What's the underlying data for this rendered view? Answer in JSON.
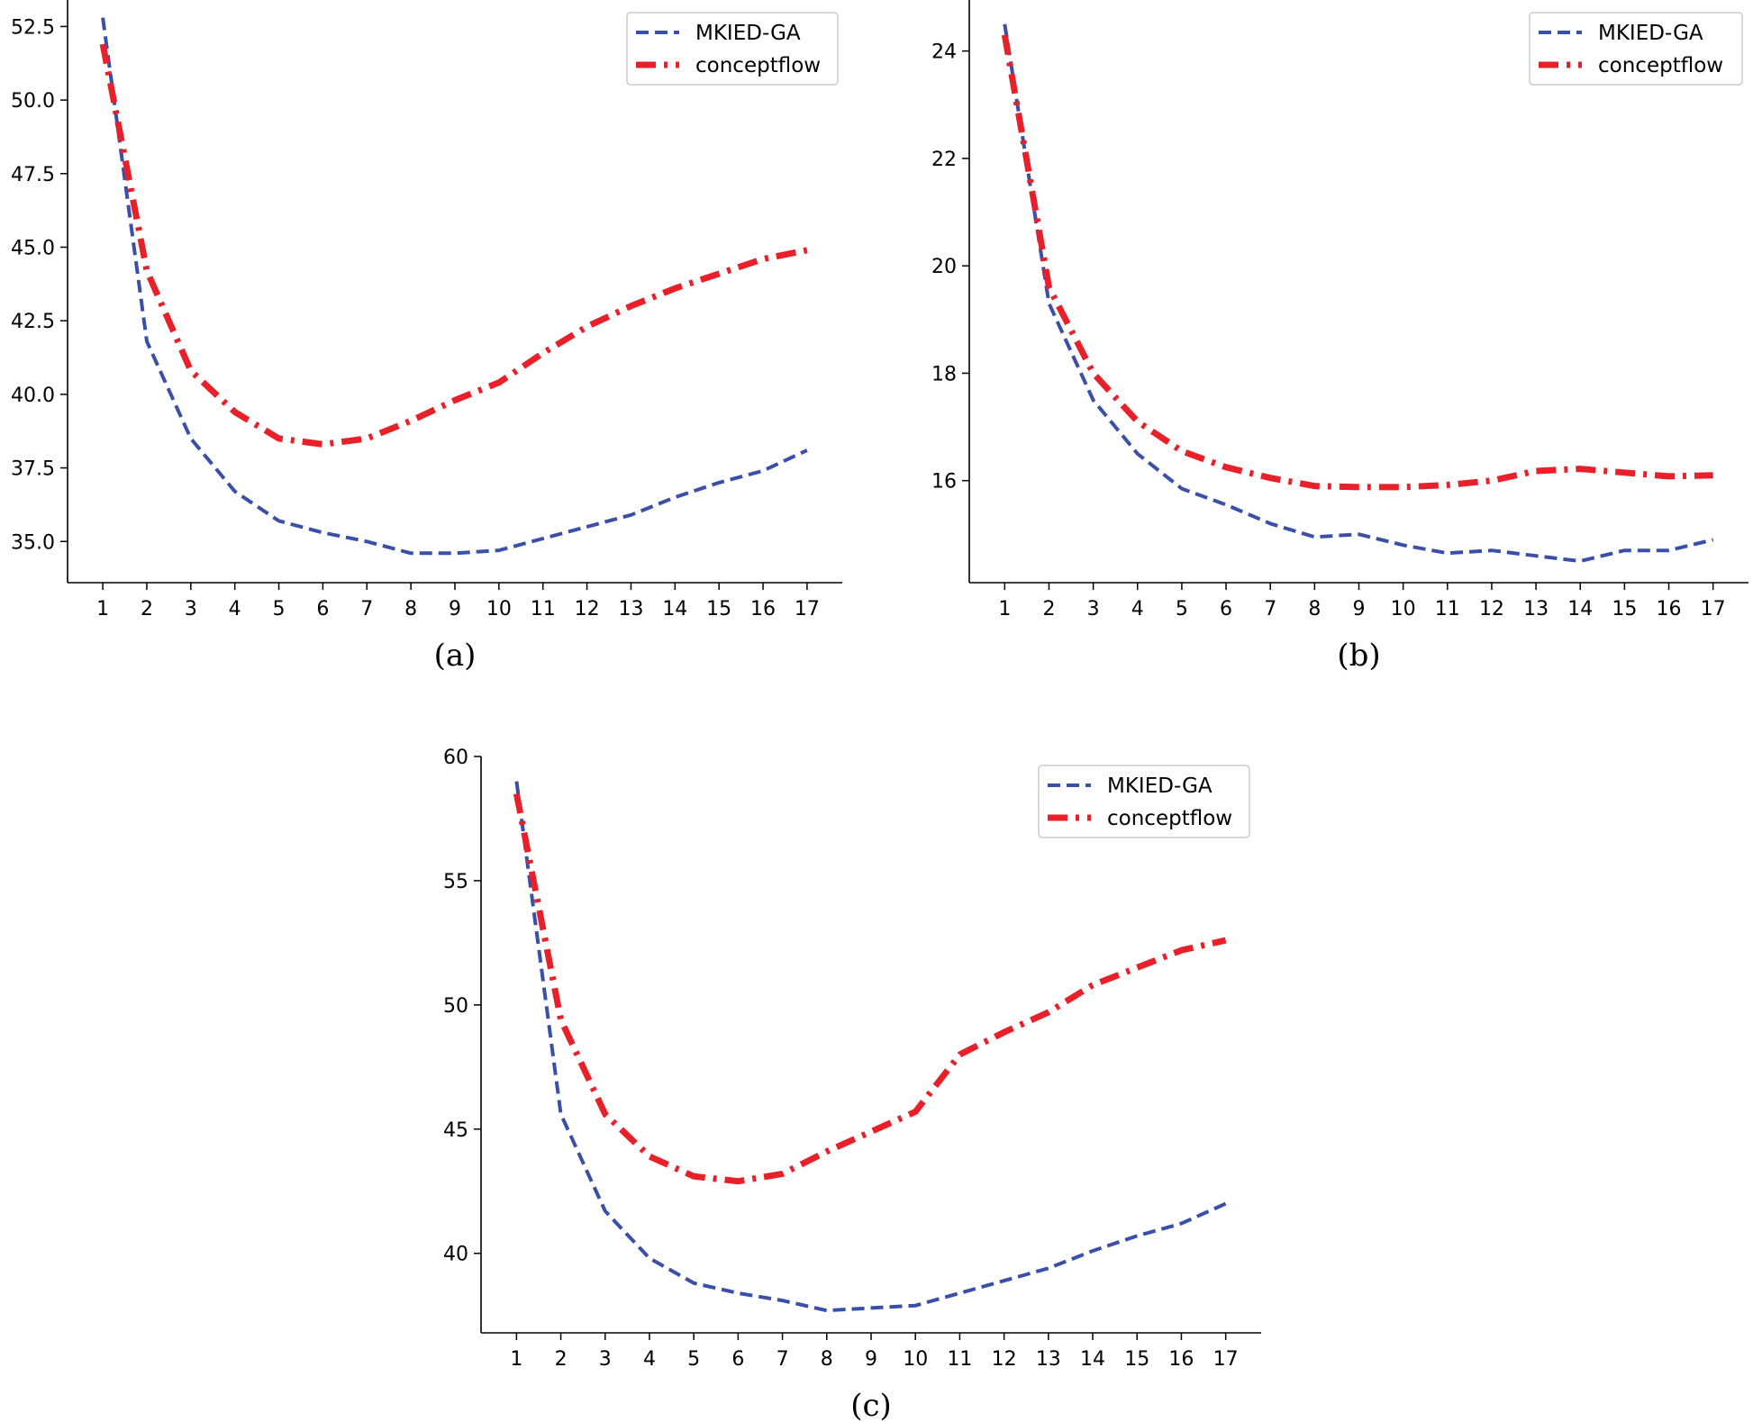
{
  "chart_data": [
    {
      "id": "a",
      "type": "line",
      "caption": "(a)",
      "x": [
        1,
        2,
        3,
        4,
        5,
        6,
        7,
        8,
        9,
        10,
        11,
        12,
        13,
        14,
        15,
        16,
        17
      ],
      "series": [
        {
          "name": "MKIED-GA",
          "color": "#3a4fa8",
          "style": "dashed",
          "values": [
            52.8,
            41.8,
            38.5,
            36.7,
            35.7,
            35.3,
            35.0,
            34.6,
            34.6,
            34.7,
            35.1,
            35.5,
            35.9,
            36.5,
            37.0,
            37.4,
            38.1
          ]
        },
        {
          "name": "conceptflow",
          "color": "#e8202a",
          "style": "dashdot",
          "values": [
            51.9,
            44.2,
            40.8,
            39.4,
            38.5,
            38.3,
            38.5,
            39.1,
            39.8,
            40.4,
            41.4,
            42.3,
            43.0,
            43.6,
            44.1,
            44.6,
            44.9
          ]
        }
      ],
      "yticks": [
        35.0,
        37.5,
        40.0,
        42.5,
        45.0,
        47.5,
        50.0,
        52.5
      ],
      "ytick_labels": [
        "35.0",
        "37.5",
        "40.0",
        "42.5",
        "45.0",
        "47.5",
        "50.0",
        "52.5"
      ],
      "xticks": [
        "1",
        "2",
        "3",
        "4",
        "5",
        "6",
        "7",
        "8",
        "9",
        "10",
        "11",
        "12",
        "13",
        "14",
        "15",
        "16",
        "17"
      ],
      "ylim": [
        33.6,
        53.4
      ],
      "xlim": [
        0.2,
        17.8
      ],
      "legend": "top-right"
    },
    {
      "id": "b",
      "type": "line",
      "caption": "(b)",
      "x": [
        1,
        2,
        3,
        4,
        5,
        6,
        7,
        8,
        9,
        10,
        11,
        12,
        13,
        14,
        15,
        16,
        17
      ],
      "series": [
        {
          "name": "MKIED-GA",
          "color": "#3a4fa8",
          "style": "dashed",
          "values": [
            24.5,
            19.3,
            17.5,
            16.5,
            15.85,
            15.55,
            15.2,
            14.95,
            15.0,
            14.8,
            14.65,
            14.7,
            14.6,
            14.5,
            14.7,
            14.7,
            14.9
          ]
        },
        {
          "name": "conceptflow",
          "color": "#e8202a",
          "style": "dashdot",
          "values": [
            24.3,
            19.6,
            18.0,
            17.1,
            16.55,
            16.25,
            16.05,
            15.9,
            15.88,
            15.88,
            15.92,
            16.0,
            16.18,
            16.22,
            16.15,
            16.08,
            16.1
          ]
        }
      ],
      "yticks": [
        16,
        18,
        20,
        22,
        24
      ],
      "ytick_labels": [
        "16",
        "18",
        "20",
        "22",
        "24"
      ],
      "xticks": [
        "1",
        "2",
        "3",
        "4",
        "5",
        "6",
        "7",
        "8",
        "9",
        "10",
        "11",
        "12",
        "13",
        "14",
        "15",
        "16",
        "17"
      ],
      "ylim": [
        14.1,
        24.95
      ],
      "xlim": [
        0.2,
        17.8
      ],
      "legend": "top-right"
    },
    {
      "id": "c",
      "type": "line",
      "caption": "(c)",
      "x": [
        1,
        2,
        3,
        4,
        5,
        6,
        7,
        8,
        9,
        10,
        11,
        12,
        13,
        14,
        15,
        16,
        17
      ],
      "series": [
        {
          "name": "MKIED-GA",
          "color": "#3a4fa8",
          "style": "dashed",
          "values": [
            59.0,
            45.6,
            41.7,
            39.8,
            38.8,
            38.4,
            38.1,
            37.7,
            37.8,
            37.9,
            38.4,
            38.9,
            39.4,
            40.1,
            40.7,
            41.2,
            42.0
          ]
        },
        {
          "name": "conceptflow",
          "color": "#e8202a",
          "style": "dashdot",
          "values": [
            58.5,
            49.4,
            45.6,
            43.9,
            43.1,
            42.9,
            43.2,
            44.1,
            44.9,
            45.7,
            48.0,
            48.9,
            49.7,
            50.8,
            51.5,
            52.2,
            52.6
          ]
        }
      ],
      "yticks": [
        40,
        45,
        50,
        55,
        60
      ],
      "ytick_labels": [
        "40",
        "45",
        "50",
        "55",
        "60"
      ],
      "xticks": [
        "1",
        "2",
        "3",
        "4",
        "5",
        "6",
        "7",
        "8",
        "9",
        "10",
        "11",
        "12",
        "13",
        "14",
        "15",
        "16",
        "17"
      ],
      "ylim": [
        36.8,
        60.0
      ],
      "xlim": [
        0.2,
        17.8
      ],
      "legend": "top-right"
    }
  ]
}
